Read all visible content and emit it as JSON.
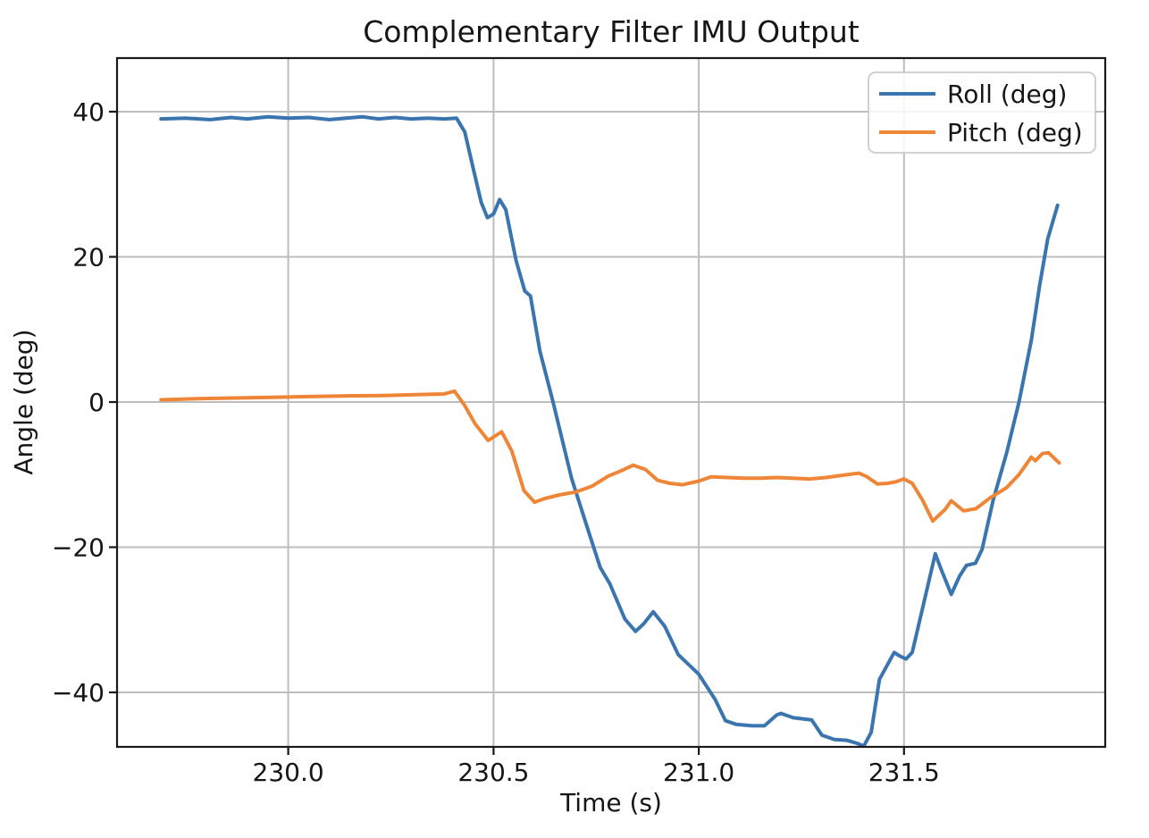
{
  "chart_data": {
    "type": "line",
    "title": "Complementary Filter IMU Output",
    "xlabel": "Time (s)",
    "ylabel": "Angle (deg)",
    "xlim": [
      229.583,
      231.99
    ],
    "ylim": [
      -47.51,
      47.38
    ],
    "grid": true,
    "legend_position": "upper right",
    "x_ticks": [
      {
        "value": 230.0,
        "label": "230.0"
      },
      {
        "value": 230.5,
        "label": "230.5"
      },
      {
        "value": 231.0,
        "label": "231.0"
      },
      {
        "value": 231.5,
        "label": "231.5"
      }
    ],
    "y_ticks": [
      {
        "value": 40,
        "label": "40"
      },
      {
        "value": 20,
        "label": "20"
      },
      {
        "value": 0,
        "label": "0"
      },
      {
        "value": -20,
        "label": "−20"
      },
      {
        "value": -40,
        "label": "−40"
      }
    ],
    "series": [
      {
        "id": "roll",
        "name": "Roll (deg)",
        "color": "#3b75af",
        "x": [
          229.69,
          229.75,
          229.81,
          229.86,
          229.9,
          229.95,
          230.0,
          230.05,
          230.1,
          230.14,
          230.18,
          230.22,
          230.26,
          230.3,
          230.34,
          230.38,
          230.41,
          230.43,
          230.45,
          230.47,
          230.485,
          230.5,
          230.515,
          230.53,
          230.555,
          230.576,
          230.59,
          230.613,
          230.645,
          230.69,
          230.733,
          230.76,
          230.783,
          230.82,
          230.846,
          230.865,
          230.889,
          230.917,
          230.95,
          231.0,
          231.04,
          231.065,
          231.09,
          231.13,
          231.16,
          231.19,
          231.2,
          231.23,
          231.26,
          231.275,
          231.3,
          231.33,
          231.36,
          231.385,
          231.402,
          231.42,
          231.44,
          231.476,
          231.49,
          231.505,
          231.52,
          231.576,
          231.59,
          231.615,
          231.635,
          231.652,
          231.674,
          231.69,
          231.717,
          231.75,
          231.78,
          231.81,
          231.83,
          231.85,
          231.874
        ],
        "y": [
          39.0,
          39.1,
          38.9,
          39.2,
          39.0,
          39.3,
          39.1,
          39.2,
          38.9,
          39.1,
          39.3,
          39.0,
          39.2,
          39.0,
          39.1,
          39.0,
          39.1,
          37.2,
          32.3,
          27.5,
          25.4,
          25.9,
          27.9,
          26.5,
          19.5,
          15.3,
          14.6,
          7.0,
          0.0,
          -10.5,
          -18.1,
          -22.8,
          -25.0,
          -29.9,
          -31.6,
          -30.6,
          -28.9,
          -30.9,
          -34.8,
          -37.5,
          -41.0,
          -43.9,
          -44.4,
          -44.6,
          -44.6,
          -43.1,
          -42.9,
          -43.5,
          -43.7,
          -43.8,
          -45.9,
          -46.5,
          -46.6,
          -47.0,
          -47.4,
          -45.5,
          -38.2,
          -34.5,
          -35.0,
          -35.4,
          -34.5,
          -20.9,
          -23.0,
          -26.5,
          -24.0,
          -22.5,
          -22.2,
          -20.3,
          -13.5,
          -7.0,
          0.0,
          8.5,
          16.0,
          22.5,
          27.1
        ]
      },
      {
        "id": "pitch",
        "name": "Pitch (deg)",
        "color": "#ef8536",
        "x": [
          229.69,
          229.78,
          229.87,
          229.96,
          230.05,
          230.14,
          230.23,
          230.31,
          230.38,
          230.405,
          230.43,
          230.455,
          230.487,
          230.52,
          230.545,
          230.574,
          230.6,
          230.625,
          230.66,
          230.7,
          230.74,
          230.78,
          230.81,
          230.84,
          230.87,
          230.9,
          230.93,
          230.96,
          231.0,
          231.03,
          231.07,
          231.11,
          231.15,
          231.19,
          231.23,
          231.27,
          231.31,
          231.35,
          231.39,
          231.41,
          231.435,
          231.46,
          231.48,
          231.5,
          231.52,
          231.545,
          231.57,
          231.6,
          231.615,
          231.645,
          231.675,
          231.71,
          231.75,
          231.78,
          231.81,
          231.82,
          231.837,
          231.852,
          231.878
        ],
        "y": [
          0.3,
          0.45,
          0.55,
          0.65,
          0.75,
          0.85,
          0.9,
          1.0,
          1.1,
          1.5,
          -0.5,
          -3.0,
          -5.3,
          -4.1,
          -6.8,
          -12.2,
          -13.8,
          -13.3,
          -12.8,
          -12.4,
          -11.6,
          -10.2,
          -9.5,
          -8.7,
          -9.3,
          -10.8,
          -11.2,
          -11.4,
          -10.9,
          -10.3,
          -10.4,
          -10.5,
          -10.5,
          -10.4,
          -10.5,
          -10.6,
          -10.4,
          -10.1,
          -9.8,
          -10.3,
          -11.3,
          -11.2,
          -11.0,
          -10.6,
          -11.2,
          -13.5,
          -16.4,
          -14.8,
          -13.6,
          -15.0,
          -14.7,
          -13.2,
          -11.8,
          -10.0,
          -7.6,
          -8.1,
          -7.1,
          -7.0,
          -8.4
        ]
      }
    ]
  }
}
